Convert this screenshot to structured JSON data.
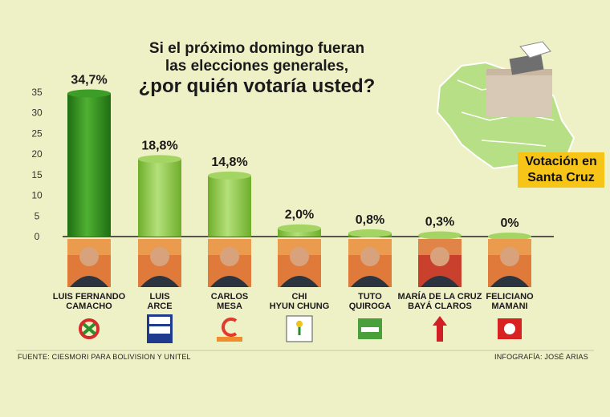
{
  "headline": {
    "line1": "Si el próximo domingo fueran",
    "line2": "las elecciones generales,",
    "line3": "¿por quién votaría usted?"
  },
  "badge": {
    "line1": "Votación en",
    "line2": "Santa Cruz"
  },
  "source": "FUENTE: CIESMORI PARA BOLIVISION Y UNITEL",
  "credit": "INFOGRAFÍA: JOSÉ ARIAS",
  "colors": {
    "background": "#eef1c6",
    "bar_first": "#2f8f1e",
    "bar_other": "#8cc63f",
    "badge": "#f7c418"
  },
  "chart_data": {
    "type": "bar",
    "title": "¿por quién votaría usted?",
    "ylim": [
      0,
      35
    ],
    "yticks": [
      "0",
      "5",
      "10",
      "15",
      "20",
      "25",
      "30",
      "35"
    ],
    "categories": [
      "LUIS FERNANDO CAMACHO",
      "LUIS ARCE",
      "CARLOS MESA",
      "CHI HYUN CHUNG",
      "TUTO QUIROGA",
      "MARÍA DE LA CRUZ BAYÁ CLAROS",
      "FELICIANO MAMANI"
    ],
    "values": [
      34.7,
      18.8,
      14.8,
      2.0,
      0.8,
      0.3,
      0
    ],
    "value_labels": [
      "34,7%",
      "18,8%",
      "14,8%",
      "2,0%",
      "0,8%",
      "0,3%",
      "0%"
    ],
    "label_lines": [
      [
        "LUIS FERNANDO",
        "CAMACHO"
      ],
      [
        "LUIS",
        "ARCE"
      ],
      [
        "CARLOS",
        "MESA"
      ],
      [
        "CHI",
        "HYUN CHUNG"
      ],
      [
        "TUTO",
        "QUIROGA"
      ],
      [
        "MARÍA DE LA CRUZ",
        "BAYÁ CLAROS"
      ],
      [
        "FELICIANO",
        "MAMANI"
      ]
    ],
    "parties": [
      "Creemos",
      "MAS IPSP",
      "COMUNIDAD CIUDADANA",
      "PDC",
      "Libre",
      "FPV",
      "PAN-BOL"
    ],
    "grid": false
  }
}
